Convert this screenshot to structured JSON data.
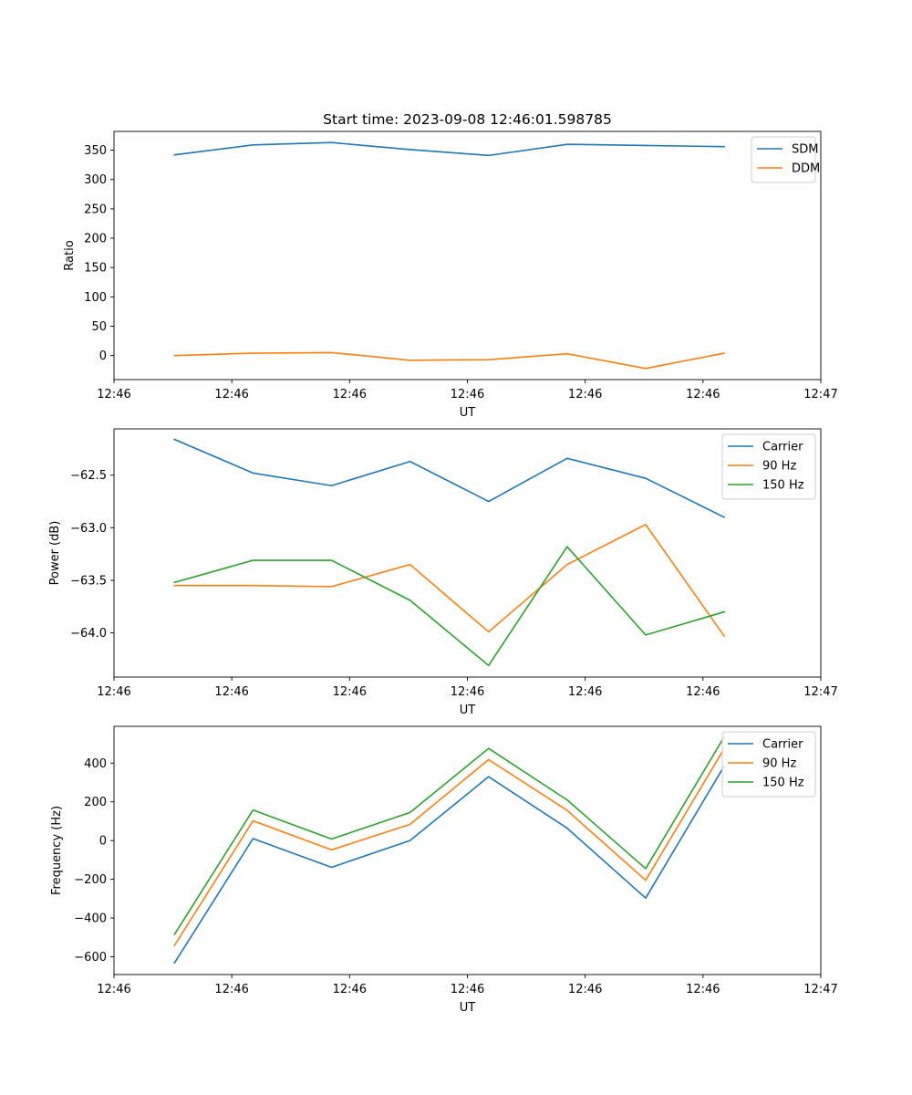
{
  "chart_data": [
    {
      "type": "line",
      "title": "Start time: 2023-09-08 12:46:01.598785",
      "xlabel": "UT",
      "ylabel": "Ratio",
      "x": [
        1,
        2,
        3,
        4,
        5,
        6,
        7,
        8
      ],
      "xlim": [
        0.23,
        9.23
      ],
      "xticks": [
        0.23,
        1.73,
        3.23,
        4.73,
        6.23,
        7.73,
        9.23
      ],
      "xtick_labels": [
        "12:46",
        "12:46",
        "12:46",
        "12:46",
        "12:46",
        "12:46",
        "12:47"
      ],
      "ylim": [
        -41,
        382
      ],
      "yticks": [
        0,
        50,
        100,
        150,
        200,
        250,
        300,
        350
      ],
      "ytick_labels": [
        "0",
        "50",
        "100",
        "150",
        "200",
        "250",
        "300",
        "350"
      ],
      "legend": "top-right",
      "series": [
        {
          "name": "SDM",
          "color": "#1f77b4",
          "values": [
            342,
            359,
            363,
            351,
            341,
            360,
            358,
            356
          ]
        },
        {
          "name": "DDM",
          "color": "#ff7f0e",
          "values": [
            0,
            4,
            5,
            -8,
            -7,
            3,
            -22,
            4
          ]
        }
      ]
    },
    {
      "type": "line",
      "title": "",
      "xlabel": "UT",
      "ylabel": "Power (dB)",
      "x": [
        1,
        2,
        3,
        4,
        5,
        6,
        7,
        8
      ],
      "xlim": [
        0.23,
        9.23
      ],
      "xticks": [
        0.23,
        1.73,
        3.23,
        4.73,
        6.23,
        7.73,
        9.23
      ],
      "xtick_labels": [
        "12:46",
        "12:46",
        "12:46",
        "12:46",
        "12:46",
        "12:46",
        "12:47"
      ],
      "ylim": [
        -64.42,
        -62.06
      ],
      "yticks": [
        -64.0,
        -63.5,
        -63.0,
        -62.5
      ],
      "ytick_labels": [
        "−64.0",
        "−63.5",
        "−63.0",
        "−62.5"
      ],
      "legend": "top-right",
      "series": [
        {
          "name": "Carrier",
          "color": "#1f77b4",
          "values": [
            -62.16,
            -62.48,
            -62.6,
            -62.37,
            -62.75,
            -62.34,
            -62.53,
            -62.9
          ]
        },
        {
          "name": "90 Hz",
          "color": "#ff7f0e",
          "values": [
            -63.55,
            -63.55,
            -63.56,
            -63.35,
            -63.99,
            -63.35,
            -62.97,
            -64.03
          ]
        },
        {
          "name": "150 Hz",
          "color": "#2ca02c",
          "values": [
            -63.52,
            -63.31,
            -63.31,
            -63.69,
            -64.31,
            -63.18,
            -64.02,
            -63.8
          ]
        }
      ]
    },
    {
      "type": "line",
      "title": "",
      "xlabel": "UT",
      "ylabel": "Frequency (Hz)",
      "x": [
        1,
        2,
        3,
        4,
        5,
        6,
        7,
        8
      ],
      "xlim": [
        0.23,
        9.23
      ],
      "xticks": [
        0.23,
        1.73,
        3.23,
        4.73,
        6.23,
        7.73,
        9.23
      ],
      "xtick_labels": [
        "12:46",
        "12:46",
        "12:46",
        "12:46",
        "12:46",
        "12:46",
        "12:47"
      ],
      "ylim": [
        -692,
        590
      ],
      "yticks": [
        -600,
        -400,
        -200,
        0,
        200,
        400
      ],
      "ytick_labels": [
        "−600",
        "−400",
        "−200",
        "0",
        "200",
        "400"
      ],
      "legend": "top-right",
      "series": [
        {
          "name": "Carrier",
          "color": "#1f77b4",
          "values": [
            -632,
            10,
            -138,
            0,
            330,
            64,
            -297,
            385
          ]
        },
        {
          "name": "90 Hz",
          "color": "#ff7f0e",
          "values": [
            -542,
            102,
            -48,
            84,
            418,
            156,
            -205,
            475
          ]
        },
        {
          "name": "150 Hz",
          "color": "#2ca02c",
          "values": [
            -485,
            158,
            8,
            145,
            476,
            210,
            -145,
            536
          ]
        }
      ]
    }
  ]
}
